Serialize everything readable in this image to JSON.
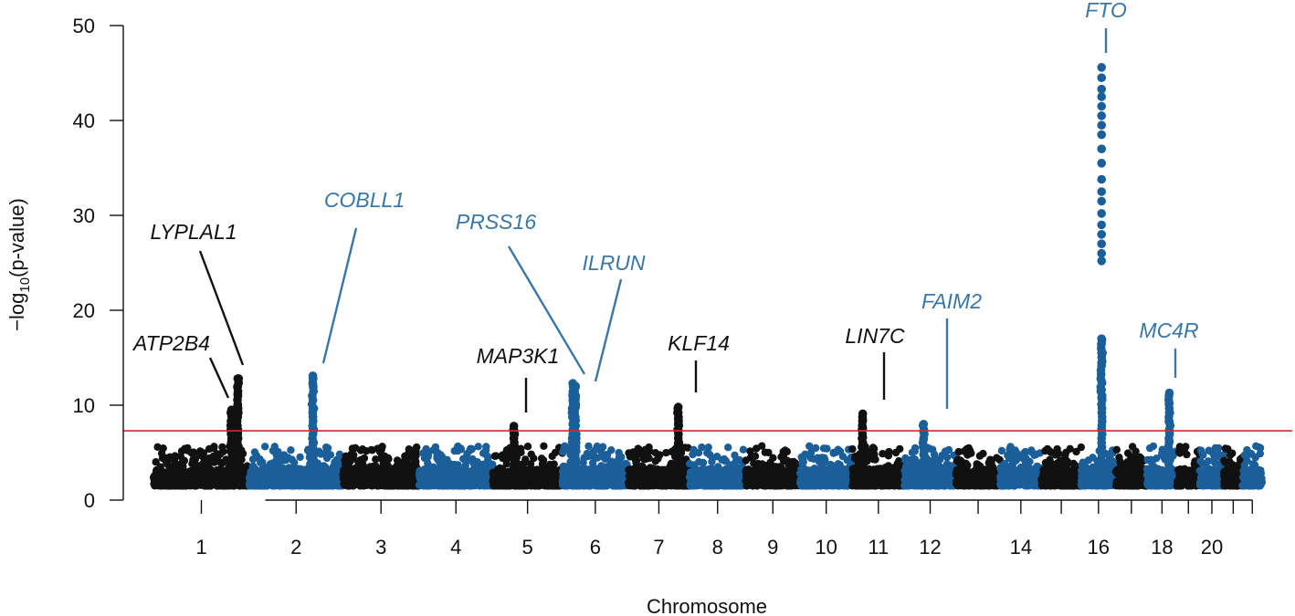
{
  "chart_data": {
    "type": "scatter",
    "subtype": "manhattan",
    "xlabel": "Chromosome",
    "ylabel_parts": [
      "−log",
      "10",
      "(p-value)"
    ],
    "ylim": [
      0,
      50
    ],
    "yticks": [
      0,
      10,
      20,
      30,
      40,
      50
    ],
    "significance_threshold": 7.3,
    "grid": false,
    "chromosomes": [
      {
        "chr": 1,
        "length": 249,
        "label": "1"
      },
      {
        "chr": 2,
        "length": 243,
        "label": "2"
      },
      {
        "chr": 3,
        "length": 198,
        "label": "3"
      },
      {
        "chr": 4,
        "length": 191,
        "label": "4"
      },
      {
        "chr": 5,
        "length": 181,
        "label": "5"
      },
      {
        "chr": 6,
        "length": 171,
        "label": "6"
      },
      {
        "chr": 7,
        "length": 159,
        "label": "7"
      },
      {
        "chr": 8,
        "length": 146,
        "label": "8"
      },
      {
        "chr": 9,
        "length": 141,
        "label": "9"
      },
      {
        "chr": 10,
        "length": 136,
        "label": "10"
      },
      {
        "chr": 11,
        "length": 135,
        "label": "11"
      },
      {
        "chr": 12,
        "length": 134,
        "label": "12"
      },
      {
        "chr": 13,
        "length": 115,
        "label": ""
      },
      {
        "chr": 14,
        "length": 107,
        "label": "14"
      },
      {
        "chr": 15,
        "length": 103,
        "label": ""
      },
      {
        "chr": 16,
        "length": 90,
        "label": "16"
      },
      {
        "chr": 17,
        "length": 81,
        "label": ""
      },
      {
        "chr": 18,
        "length": 78,
        "label": "18"
      },
      {
        "chr": 19,
        "length": 59,
        "label": ""
      },
      {
        "chr": 20,
        "length": 63,
        "label": "20"
      },
      {
        "chr": 21,
        "length": 48,
        "label": ""
      },
      {
        "chr": 22,
        "length": 51,
        "label": ""
      }
    ],
    "colors": {
      "odd": "#111111",
      "even": "#1b5f9a",
      "threshold": "#d02a2a",
      "label_black": "#111111",
      "label_blue": "#3a77a6"
    },
    "peaks": [
      {
        "gene": "ATP2B4",
        "chr": 1,
        "pos": 203,
        "max": 9.5,
        "pvals": [
          5.2,
          6.4,
          7.6,
          8.3,
          8.9,
          9.4,
          9.5
        ],
        "label_color": "black"
      },
      {
        "gene": "LYPLAL1",
        "chr": 1,
        "pos": 219,
        "max": 12.8,
        "pvals": [
          5.5,
          7.2,
          8.8,
          10.0,
          11.2,
          12.0,
          12.8
        ],
        "label_color": "black"
      },
      {
        "gene": "COBLL1",
        "chr": 2,
        "pos": 165,
        "max": 13.1,
        "pvals": [
          4.8,
          6.0,
          7.6,
          8.8,
          9.6,
          12.2,
          12.8,
          13.1
        ],
        "label_color": "blue"
      },
      {
        "gene": "MAP3K1",
        "chr": 5,
        "pos": 55,
        "max": 7.8,
        "pvals": [
          4.5,
          5.5,
          6.5,
          7.0,
          7.4,
          7.8
        ],
        "label_color": "black"
      },
      {
        "gene": "PRSS16",
        "chr": 6,
        "pos": 27,
        "max": 12.3,
        "pvals": [
          5.0,
          6.5,
          8.0,
          9.5,
          10.5,
          11.4,
          12.3
        ],
        "label_color": "blue"
      },
      {
        "gene": "ILRUN",
        "chr": 6,
        "pos": 34,
        "max": 12.0,
        "pvals": [
          5.2,
          6.8,
          8.4,
          9.8,
          10.8,
          12.0
        ],
        "label_color": "blue"
      },
      {
        "gene": "KLF14",
        "chr": 7,
        "pos": 130,
        "max": 9.8,
        "pvals": [
          5.6,
          6.0,
          7.4,
          8.0,
          8.6,
          9.2,
          9.8
        ],
        "label_color": "black"
      },
      {
        "gene": "LIN7C",
        "chr": 11,
        "pos": 27,
        "max": 9.1,
        "pvals": [
          4.6,
          5.5,
          6.6,
          7.6,
          8.4,
          9.1
        ],
        "label_color": "black"
      },
      {
        "gene": "FAIM2",
        "chr": 12,
        "pos": 50,
        "max": 8.0,
        "pvals": [
          4.8,
          5.6,
          6.4,
          7.2,
          8.0
        ],
        "label_color": "blue"
      },
      {
        "gene": "FTO",
        "chr": 16,
        "pos": 53,
        "max": 45.6,
        "pvals": [
          5.2,
          7.5,
          10.8,
          11.6,
          12.5,
          14.5,
          15.5,
          16.5,
          17.0,
          25.2,
          26.0,
          27.0,
          28.0,
          29.0,
          30.2,
          31.5,
          32.5,
          33.8,
          35.5,
          37.0,
          38.5,
          39.5,
          40.5,
          41.5,
          42.5,
          43.3,
          44.5,
          45.6
        ],
        "label_color": "blue"
      },
      {
        "gene": "MC4R",
        "chr": 18,
        "pos": 58,
        "max": 11.3,
        "pvals": [
          5.0,
          6.2,
          7.2,
          8.2,
          9.2,
          10.2,
          11.3
        ],
        "label_color": "blue"
      }
    ]
  }
}
